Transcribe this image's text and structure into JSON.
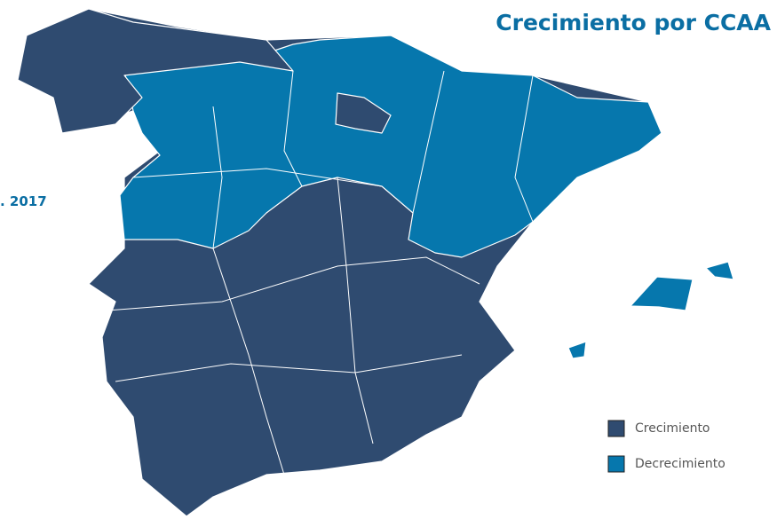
{
  "title": "Crecimiento por CCAA",
  "subtitle": ". 2017",
  "legend": [
    {
      "label": "Crecimiento",
      "color": "#2f4b70"
    },
    {
      "label": "Decrecimiento",
      "color": "#0677ad"
    }
  ]
}
